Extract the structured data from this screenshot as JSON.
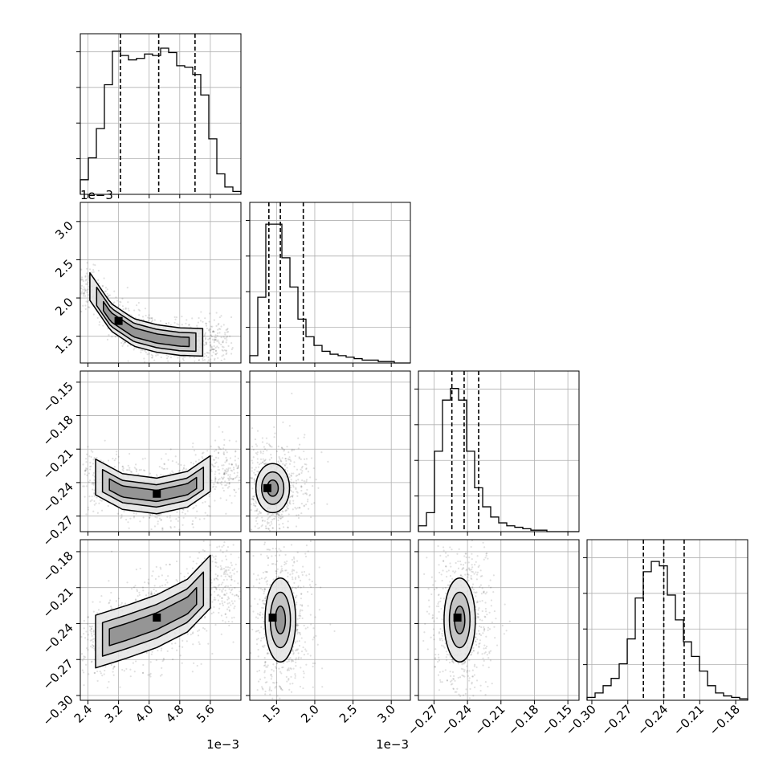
{
  "chart_data": {
    "type": "corner",
    "parameters": 4,
    "quantile_style": "dashed",
    "grid": true,
    "axes": [
      {
        "range": [
          2.2,
          6.4
        ],
        "ticks": [
          2.4,
          3.2,
          4.0,
          4.8,
          5.6
        ],
        "tick_labels": [
          "2.4",
          "3.2",
          "4.0",
          "4.8",
          "5.6"
        ],
        "offset_label": "1e−3"
      },
      {
        "range": [
          1.15,
          3.25
        ],
        "ticks": [
          1.5,
          2.0,
          2.5,
          3.0
        ],
        "tick_labels": [
          "1.5",
          "2.0",
          "2.5",
          "3.0"
        ],
        "offset_label": "1e−3"
      },
      {
        "range": [
          -0.284,
          -0.14
        ],
        "ticks": [
          -0.27,
          -0.24,
          -0.21,
          -0.18,
          -0.15
        ],
        "tick_labels": [
          "−0.27",
          "−0.24",
          "−0.21",
          "−0.18",
          "−0.15"
        ]
      },
      {
        "range": [
          -0.304,
          -0.17
        ],
        "ticks": [
          -0.3,
          -0.27,
          -0.24,
          -0.21,
          -0.18
        ],
        "tick_labels": [
          "−0.30",
          "−0.27",
          "−0.24",
          "−0.21",
          "−0.18"
        ]
      }
    ],
    "histograms": [
      {
        "param": 0,
        "quantiles": [
          3.25,
          4.25,
          5.2
        ],
        "counts": [
          0.1,
          0.25,
          0.45,
          0.75,
          0.98,
          0.95,
          0.92,
          0.93,
          0.96,
          0.95,
          1.0,
          0.97,
          0.88,
          0.87,
          0.82,
          0.68,
          0.38,
          0.14,
          0.05,
          0.02
        ]
      },
      {
        "param": 1,
        "quantiles": [
          1.4,
          1.55,
          1.85
        ],
        "counts": [
          0.05,
          0.45,
          0.95,
          0.95,
          0.72,
          0.52,
          0.3,
          0.18,
          0.12,
          0.08,
          0.06,
          0.05,
          0.04,
          0.03,
          0.02,
          0.02,
          0.01,
          0.01,
          0.0,
          0.0
        ]
      },
      {
        "param": 2,
        "quantiles": [
          -0.254,
          -0.243,
          -0.23
        ],
        "counts": [
          0.04,
          0.13,
          0.55,
          0.9,
          0.98,
          0.9,
          0.55,
          0.3,
          0.17,
          0.1,
          0.06,
          0.04,
          0.03,
          0.02,
          0.01,
          0.01,
          0.0,
          0.0,
          0.0,
          0.0
        ]
      },
      {
        "param": 3,
        "quantiles": [
          -0.257,
          -0.24,
          -0.223
        ],
        "counts": [
          0.02,
          0.05,
          0.1,
          0.15,
          0.25,
          0.42,
          0.7,
          0.88,
          0.95,
          0.92,
          0.72,
          0.55,
          0.4,
          0.3,
          0.2,
          0.1,
          0.05,
          0.03,
          0.02,
          0.01
        ]
      }
    ],
    "panels_2d": [
      {
        "x": 0,
        "y": 1,
        "shape": "curve",
        "ridge": [
          [
            2.45,
            2.15
          ],
          [
            3.0,
            1.75
          ],
          [
            3.6,
            1.55
          ],
          [
            4.2,
            1.47
          ],
          [
            4.8,
            1.43
          ],
          [
            5.4,
            1.42
          ]
        ],
        "widths": [
          0.18,
          0.12,
          0.06
        ],
        "peak": [
          3.2,
          1.7
        ]
      },
      {
        "x": 0,
        "y": 2,
        "shape": "curve",
        "ridge": [
          [
            2.6,
            -0.235
          ],
          [
            3.3,
            -0.248
          ],
          [
            4.2,
            -0.252
          ],
          [
            5.0,
            -0.246
          ],
          [
            5.6,
            -0.232
          ]
        ],
        "widths": [
          0.016,
          0.01,
          0.005
        ],
        "peak": [
          4.2,
          -0.25
        ]
      },
      {
        "x": 0,
        "y": 3,
        "shape": "curve",
        "ridge": [
          [
            2.6,
            -0.255
          ],
          [
            3.4,
            -0.247
          ],
          [
            4.2,
            -0.238
          ],
          [
            5.0,
            -0.225
          ],
          [
            5.6,
            -0.205
          ]
        ],
        "widths": [
          0.022,
          0.014,
          0.007
        ],
        "peak": [
          4.2,
          -0.235
        ]
      },
      {
        "x": 1,
        "y": 2,
        "shape": "ellipse",
        "center": [
          1.45,
          -0.245
        ],
        "radius": [
          0.22,
          0.022
        ],
        "peak": [
          1.38,
          -0.245
        ]
      },
      {
        "x": 1,
        "y": 3,
        "shape": "ellipse",
        "center": [
          1.55,
          -0.237
        ],
        "radius": [
          0.2,
          0.035
        ],
        "peak": [
          1.45,
          -0.235
        ]
      },
      {
        "x": 2,
        "y": 3,
        "shape": "ellipse",
        "center": [
          -0.247,
          -0.237
        ],
        "radius": [
          0.014,
          0.035
        ],
        "peak": [
          -0.249,
          -0.235
        ]
      }
    ],
    "axis_labels": [
      "",
      "",
      "",
      ""
    ]
  }
}
